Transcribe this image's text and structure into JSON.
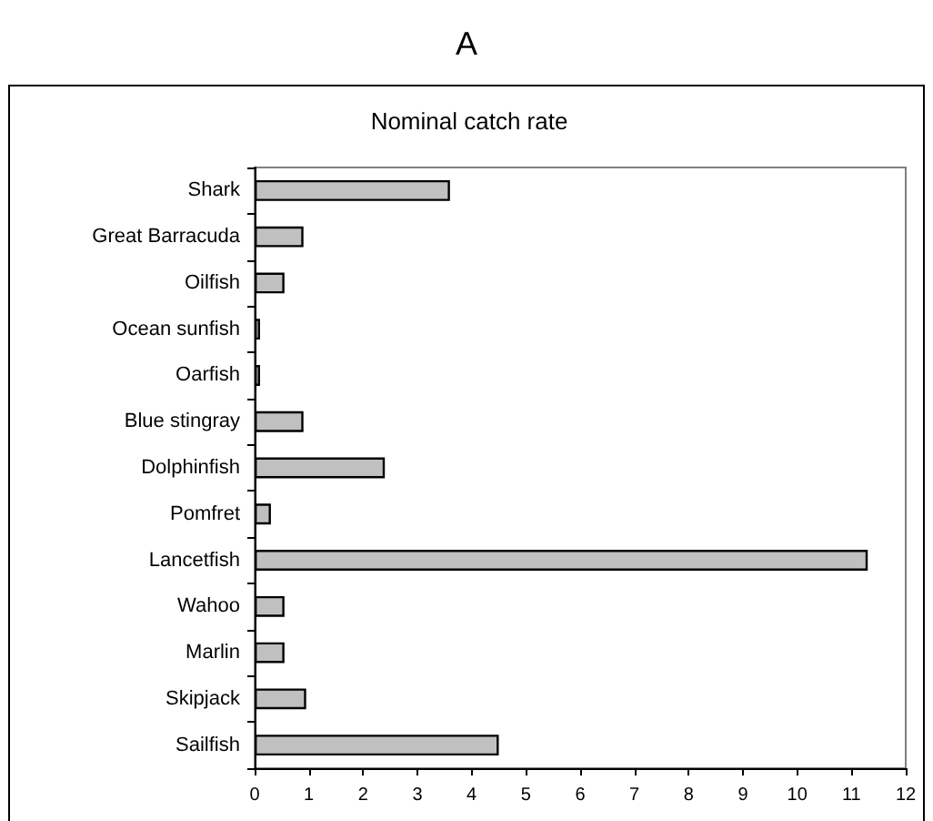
{
  "chart_data": {
    "type": "bar",
    "orientation": "horizontal",
    "title": "A",
    "subtitle": "Nominal catch rate",
    "categories": [
      "Shark",
      "Great Barracuda",
      "Oilfish",
      "Ocean sunfish",
      "Oarfish",
      "Blue stingray",
      "Dolphinfish",
      "Pomfret",
      "Lancetfish",
      "Wahoo",
      "Marlin",
      "Skipjack",
      "Sailfish"
    ],
    "values": [
      3.6,
      0.9,
      0.55,
      0.1,
      0.1,
      0.9,
      2.4,
      0.3,
      11.3,
      0.55,
      0.55,
      0.95,
      4.5
    ],
    "color": "#c0c0c0",
    "xlim": [
      0,
      12
    ],
    "xticks": [
      0,
      1,
      2,
      3,
      4,
      5,
      6,
      7,
      8,
      9,
      10,
      11,
      12
    ],
    "grid": false
  }
}
